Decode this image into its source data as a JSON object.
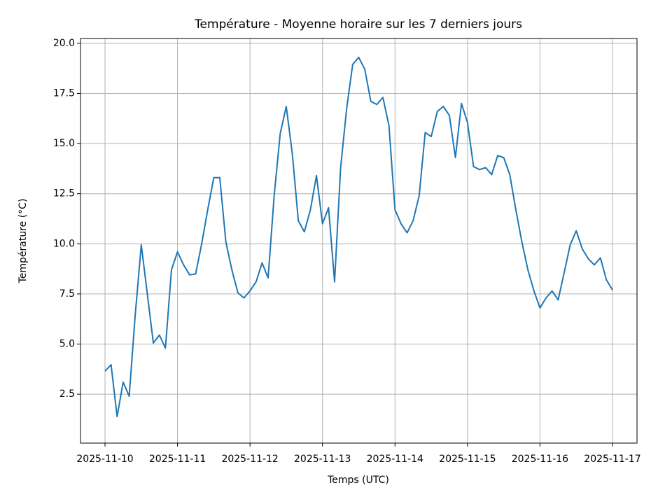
{
  "chart_data": {
    "type": "line",
    "title": "Température - Moyenne horaire sur les 7 derniers jours",
    "x_label": "Temps (UTC)",
    "y_label": "Température (°C)",
    "x": [
      "2025-11-10T00:00",
      "2025-11-10T02:00",
      "2025-11-10T04:00",
      "2025-11-10T06:00",
      "2025-11-10T08:00",
      "2025-11-10T10:00",
      "2025-11-10T12:00",
      "2025-11-10T14:00",
      "2025-11-10T16:00",
      "2025-11-10T18:00",
      "2025-11-10T20:00",
      "2025-11-10T22:00",
      "2025-11-11T00:00",
      "2025-11-11T02:00",
      "2025-11-11T04:00",
      "2025-11-11T06:00",
      "2025-11-11T08:00",
      "2025-11-11T10:00",
      "2025-11-11T12:00",
      "2025-11-11T14:00",
      "2025-11-11T16:00",
      "2025-11-11T18:00",
      "2025-11-11T20:00",
      "2025-11-11T22:00",
      "2025-11-12T00:00",
      "2025-11-12T02:00",
      "2025-11-12T04:00",
      "2025-11-12T06:00",
      "2025-11-12T08:00",
      "2025-11-12T10:00",
      "2025-11-12T12:00",
      "2025-11-12T14:00",
      "2025-11-12T16:00",
      "2025-11-12T18:00",
      "2025-11-12T20:00",
      "2025-11-12T22:00",
      "2025-11-13T00:00",
      "2025-11-13T02:00",
      "2025-11-13T04:00",
      "2025-11-13T06:00",
      "2025-11-13T08:00",
      "2025-11-13T10:00",
      "2025-11-13T12:00",
      "2025-11-13T14:00",
      "2025-11-13T16:00",
      "2025-11-13T18:00",
      "2025-11-13T20:00",
      "2025-11-13T22:00",
      "2025-11-14T00:00",
      "2025-11-14T02:00",
      "2025-11-14T04:00",
      "2025-11-14T06:00",
      "2025-11-14T08:00",
      "2025-11-14T10:00",
      "2025-11-14T12:00",
      "2025-11-14T14:00",
      "2025-11-14T16:00",
      "2025-11-14T18:00",
      "2025-11-14T20:00",
      "2025-11-14T22:00",
      "2025-11-15T00:00",
      "2025-11-15T02:00",
      "2025-11-15T04:00",
      "2025-11-15T06:00",
      "2025-11-15T08:00",
      "2025-11-15T10:00",
      "2025-11-15T12:00",
      "2025-11-15T14:00",
      "2025-11-15T16:00",
      "2025-11-15T18:00",
      "2025-11-15T20:00",
      "2025-11-15T22:00",
      "2025-11-16T00:00",
      "2025-11-16T02:00",
      "2025-11-16T04:00",
      "2025-11-16T06:00",
      "2025-11-16T08:00",
      "2025-11-16T10:00",
      "2025-11-16T12:00",
      "2025-11-16T14:00",
      "2025-11-16T16:00",
      "2025-11-16T18:00",
      "2025-11-16T20:00",
      "2025-11-16T22:00",
      "2025-11-17T00:00"
    ],
    "series": [
      {
        "color": "#1f77b4",
        "values": [
          3.65,
          3.97,
          1.38,
          3.1,
          2.4,
          6.45,
          9.95,
          7.5,
          5.05,
          5.45,
          4.8,
          8.7,
          9.6,
          8.95,
          8.45,
          8.5,
          10.0,
          11.7,
          13.3,
          13.3,
          10.1,
          8.7,
          7.55,
          7.3,
          7.65,
          8.1,
          9.05,
          8.3,
          12.4,
          15.5,
          16.85,
          14.5,
          11.15,
          10.6,
          11.7,
          13.4,
          11.0,
          11.8,
          8.1,
          13.8,
          16.75,
          18.95,
          19.3,
          18.7,
          17.1,
          16.95,
          17.3,
          15.9,
          11.7,
          11.0,
          10.55,
          11.15,
          12.4,
          15.55,
          15.35,
          16.6,
          16.85,
          16.4,
          14.3,
          17.0,
          16.05,
          13.85,
          13.7,
          13.8,
          13.45,
          14.4,
          14.3,
          13.45,
          11.7,
          10.1,
          8.7,
          7.65,
          6.8,
          7.3,
          7.65,
          7.2,
          8.55,
          9.95,
          10.65,
          9.75,
          9.25,
          8.95,
          9.3,
          8.2,
          7.7
        ]
      }
    ],
    "xlim": [
      "2025-11-09T15:53",
      "2025-11-17T08:07"
    ],
    "xticks": [
      "2025-11-10",
      "2025-11-11",
      "2025-11-12",
      "2025-11-13",
      "2025-11-14",
      "2025-11-15",
      "2025-11-16",
      "2025-11-17"
    ],
    "ylim": [
      0.06,
      20.24
    ],
    "yticks": [
      {
        "value": 2.5,
        "label": "2.5"
      },
      {
        "value": 5,
        "label": "5.0"
      },
      {
        "value": 7.5,
        "label": "7.5"
      },
      {
        "value": 10,
        "label": "10.0"
      },
      {
        "value": 12.5,
        "label": "12.5"
      },
      {
        "value": 15,
        "label": "15.0"
      },
      {
        "value": 17.5,
        "label": "17.5"
      },
      {
        "value": 20,
        "label": "20.0"
      }
    ],
    "grid": true
  }
}
